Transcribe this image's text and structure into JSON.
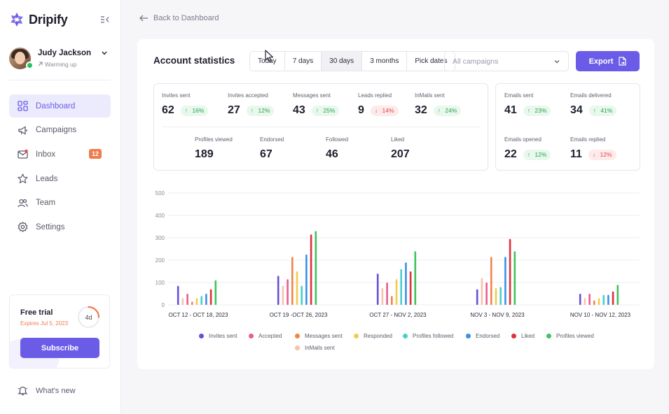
{
  "app": {
    "name": "Dripify"
  },
  "user": {
    "name": "Judy Jackson",
    "status": "Warming up"
  },
  "nav": [
    {
      "label": "Dashboard",
      "icon": "dashboard-icon",
      "active": true
    },
    {
      "label": "Campaigns",
      "icon": "megaphone-icon"
    },
    {
      "label": "Inbox",
      "icon": "inbox-icon",
      "badge": "12"
    },
    {
      "label": "Leads",
      "icon": "leads-icon"
    },
    {
      "label": "Team",
      "icon": "team-icon"
    },
    {
      "label": "Settings",
      "icon": "gear-icon"
    }
  ],
  "trial": {
    "title": "Free trial",
    "expires": "Expires Jul 5, 2023",
    "days_left": "4d",
    "progress": 0.25,
    "subscribe_label": "Subscribe"
  },
  "whats_new": "What's new",
  "back_label": "Back to Dashboard",
  "card": {
    "title": "Account statistics",
    "ranges": [
      "Today",
      "7 days",
      "30 days",
      "3 months",
      "Pick dates"
    ],
    "active_range": "30 days",
    "campaign_placeholder": "All campaigns",
    "export_label": "Export"
  },
  "linkedin_stats": {
    "top": [
      {
        "label": "Invites sent",
        "value": "62",
        "delta": "16%",
        "dir": "up"
      },
      {
        "label": "Invites accepted",
        "value": "27",
        "delta": "12%",
        "dir": "up"
      },
      {
        "label": "Messages sent",
        "value": "43",
        "delta": "25%",
        "dir": "up"
      },
      {
        "label": "Leads replied",
        "value": "9",
        "delta": "14%",
        "dir": "down"
      },
      {
        "label": "InMails sent",
        "value": "32",
        "delta": "24%",
        "dir": "up"
      }
    ],
    "bottom": [
      {
        "label": "Profiles viewed",
        "value": "189"
      },
      {
        "label": "Endorsed",
        "value": "67"
      },
      {
        "label": "Followed",
        "value": "46"
      },
      {
        "label": "Liked",
        "value": "207"
      }
    ]
  },
  "email_stats": [
    {
      "label": "Emails sent",
      "value": "41",
      "delta": "23%",
      "dir": "up"
    },
    {
      "label": "Emails delivered",
      "value": "34",
      "delta": "41%",
      "dir": "up"
    },
    {
      "label": "Emails opened",
      "value": "22",
      "delta": "12%",
      "dir": "up"
    },
    {
      "label": "Emails replied",
      "value": "11",
      "delta": "12%",
      "dir": "down"
    }
  ],
  "colors": {
    "accent": "#6b5ce7",
    "up": "#2fa24f",
    "down": "#e04848"
  },
  "chart_data": {
    "type": "bar",
    "categories": [
      "OCT 12 - OCT 18, 2023",
      "OCT 19 -OCT 26, 2023",
      "OCT 27 - NOV 2, 2023",
      "NOV 3 - NOV 9, 2023",
      "NOV 10 - NOV 12, 2023"
    ],
    "ylim": [
      0,
      500
    ],
    "yticks": [
      0,
      100,
      200,
      300,
      400,
      500
    ],
    "grid": true,
    "legend_position": "bottom",
    "series": [
      {
        "name": "Invites sent",
        "color": "#6650d8",
        "values": [
          85,
          130,
          140,
          70,
          50
        ]
      },
      {
        "name": "InMails sent",
        "color": "#f6c3ad",
        "values": [
          30,
          85,
          75,
          120,
          30
        ]
      },
      {
        "name": "Accepted",
        "color": "#e85d8a",
        "values": [
          50,
          115,
          100,
          100,
          50
        ]
      },
      {
        "name": "Messages sent",
        "color": "#f2844c",
        "values": [
          15,
          215,
          40,
          215,
          20
        ]
      },
      {
        "name": "Responded",
        "color": "#f2cc4c",
        "values": [
          30,
          150,
          115,
          75,
          30
        ]
      },
      {
        "name": "Profiles followed",
        "color": "#48cfd1",
        "values": [
          40,
          85,
          160,
          80,
          45
        ]
      },
      {
        "name": "Endorsed",
        "color": "#3d8fe8",
        "values": [
          50,
          225,
          190,
          215,
          45
        ]
      },
      {
        "name": "Liked",
        "color": "#e0303c",
        "values": [
          70,
          315,
          150,
          295,
          60
        ]
      },
      {
        "name": "Profiles viewed",
        "color": "#3fc45b",
        "values": [
          110,
          330,
          240,
          240,
          90
        ]
      }
    ]
  }
}
